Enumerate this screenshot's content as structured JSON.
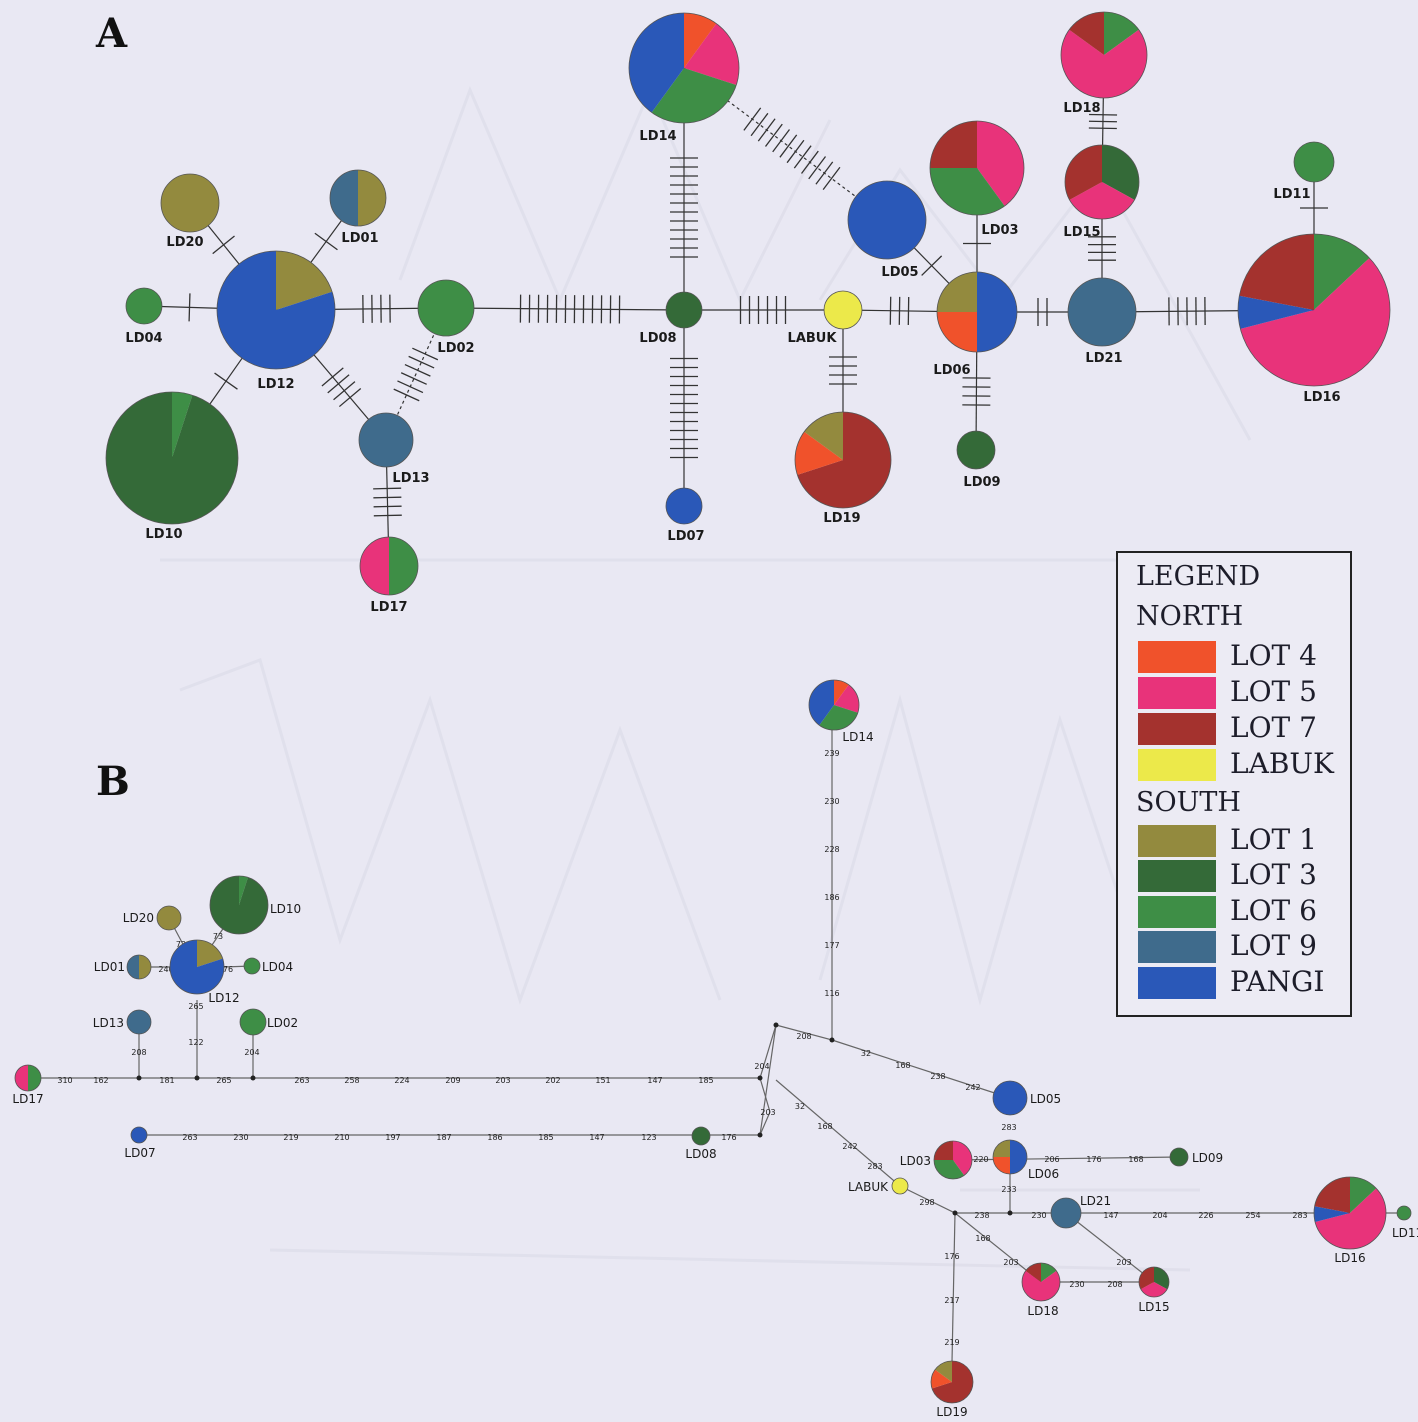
{
  "panels": {
    "a": "A",
    "b": "B"
  },
  "colors": {
    "LOT4": "#f0522b",
    "LOT5": "#e8337a",
    "LOT7": "#a4322e",
    "LABUK": "#ece94a",
    "LOT1": "#938a3e",
    "LOT3": "#346a38",
    "LOT6": "#3e8e46",
    "LOT9": "#3f6b8c",
    "PANGI": "#2a58b8"
  },
  "legend": {
    "title": "LEGEND",
    "groups": [
      {
        "name": "NORTH",
        "items": [
          {
            "key": "LOT4",
            "label": "LOT 4"
          },
          {
            "key": "LOT5",
            "label": "LOT 5"
          },
          {
            "key": "LOT7",
            "label": "LOT 7"
          },
          {
            "key": "LABUK",
            "label": "LABUK"
          }
        ]
      },
      {
        "name": "SOUTH",
        "items": [
          {
            "key": "LOT1",
            "label": "LOT 1"
          },
          {
            "key": "LOT3",
            "label": "LOT 3"
          },
          {
            "key": "LOT6",
            "label": "LOT 6"
          },
          {
            "key": "LOT9",
            "label": "LOT 9"
          },
          {
            "key": "PANGI",
            "label": "PANGI"
          }
        ]
      }
    ]
  },
  "haplotypes": [
    {
      "id": "LD01",
      "label": "LD01",
      "composition": [
        [
          "LOT1",
          0.5
        ],
        [
          "LOT9",
          0.5
        ]
      ]
    },
    {
      "id": "LD02",
      "label": "LD02",
      "composition": [
        [
          "LOT6",
          1
        ]
      ]
    },
    {
      "id": "LD03",
      "label": "LD03",
      "composition": [
        [
          "LOT5",
          0.4
        ],
        [
          "LOT6",
          0.35
        ],
        [
          "LOT7",
          0.25
        ]
      ]
    },
    {
      "id": "LD04",
      "label": "LD04",
      "composition": [
        [
          "LOT6",
          1
        ]
      ]
    },
    {
      "id": "LD05",
      "label": "LD05",
      "composition": [
        [
          "PANGI",
          1
        ]
      ]
    },
    {
      "id": "LD06",
      "label": "LD06",
      "composition": [
        [
          "PANGI",
          0.5
        ],
        [
          "LOT4",
          0.25
        ],
        [
          "LOT1",
          0.25
        ]
      ]
    },
    {
      "id": "LD07",
      "label": "LD07",
      "composition": [
        [
          "PANGI",
          1
        ]
      ]
    },
    {
      "id": "LD08",
      "label": "LD08",
      "composition": [
        [
          "LOT3",
          1
        ]
      ]
    },
    {
      "id": "LD09",
      "label": "LD09",
      "composition": [
        [
          "LOT3",
          1
        ]
      ]
    },
    {
      "id": "LD10",
      "label": "LD10",
      "composition": [
        [
          "LOT6",
          0.05
        ],
        [
          "LOT3",
          0.95
        ]
      ]
    },
    {
      "id": "LD11",
      "label": "LD11",
      "composition": [
        [
          "LOT6",
          1
        ]
      ]
    },
    {
      "id": "LD12",
      "label": "LD12",
      "composition": [
        [
          "LOT1",
          0.2
        ],
        [
          "PANGI",
          0.8
        ]
      ]
    },
    {
      "id": "LD13",
      "label": "LD13",
      "composition": [
        [
          "LOT9",
          1
        ]
      ]
    },
    {
      "id": "LD14",
      "label": "LD14",
      "composition": [
        [
          "LOT4",
          0.1
        ],
        [
          "LOT5",
          0.2
        ],
        [
          "LOT6",
          0.3
        ],
        [
          "PANGI",
          0.4
        ]
      ]
    },
    {
      "id": "LD15",
      "label": "LD15",
      "composition": [
        [
          "LOT3",
          0.33
        ],
        [
          "LOT5",
          0.34
        ],
        [
          "LOT7",
          0.33
        ]
      ]
    },
    {
      "id": "LD16",
      "label": "LD16",
      "composition": [
        [
          "LOT6",
          0.13
        ],
        [
          "LOT5",
          0.58
        ],
        [
          "PANGI",
          0.07
        ],
        [
          "LOT7",
          0.22
        ]
      ]
    },
    {
      "id": "LD17",
      "label": "LD17",
      "composition": [
        [
          "LOT6",
          0.5
        ],
        [
          "LOT5",
          0.5
        ]
      ]
    },
    {
      "id": "LD18",
      "label": "LD18",
      "composition": [
        [
          "LOT6",
          0.15
        ],
        [
          "LOT5",
          0.7
        ],
        [
          "LOT7",
          0.15
        ]
      ]
    },
    {
      "id": "LD19",
      "label": "LD19",
      "composition": [
        [
          "LOT7",
          0.7
        ],
        [
          "LOT4",
          0.15
        ],
        [
          "LOT1",
          0.15
        ]
      ]
    },
    {
      "id": "LD20",
      "label": "LD20",
      "composition": [
        [
          "LOT1",
          1
        ]
      ]
    },
    {
      "id": "LD21",
      "label": "LD21",
      "composition": [
        [
          "LOT9",
          1
        ]
      ]
    },
    {
      "id": "LABUK",
      "label": "LABUK",
      "composition": [
        [
          "LABUK",
          1
        ]
      ]
    }
  ],
  "network_a": {
    "links": [
      {
        "from": "LD04",
        "to": "LD12",
        "steps": 1
      },
      {
        "from": "LD20",
        "to": "LD12",
        "steps": 1
      },
      {
        "from": "LD01",
        "to": "LD12",
        "steps": 1
      },
      {
        "from": "LD10",
        "to": "LD12",
        "steps": 1
      },
      {
        "from": "LD12",
        "to": "LD02",
        "steps": 4
      },
      {
        "from": "LD12",
        "to": "LD13",
        "steps": 4
      },
      {
        "from": "LD02",
        "to": "LD13",
        "steps": 6,
        "dashed": true
      },
      {
        "from": "LD13",
        "to": "LD17",
        "steps": 4
      },
      {
        "from": "LD02",
        "to": "LD08",
        "steps": 12
      },
      {
        "from": "LD08",
        "to": "LD14",
        "steps": 12
      },
      {
        "from": "LD08",
        "to": "LD07",
        "steps": 12
      },
      {
        "from": "LD14",
        "to": "LD05",
        "steps": 12,
        "dashed": true
      },
      {
        "from": "LD08",
        "to": "LABUK",
        "steps": 6
      },
      {
        "from": "LABUK",
        "to": "LD19",
        "steps": 4
      },
      {
        "from": "LABUK",
        "to": "LD06",
        "steps": 3
      },
      {
        "from": "LD05",
        "to": "LD06",
        "steps": 1
      },
      {
        "from": "LD03",
        "to": "LD06",
        "steps": 1
      },
      {
        "from": "LD06",
        "to": "LD09",
        "steps": 4
      },
      {
        "from": "LD06",
        "to": "LD21",
        "steps": 2
      },
      {
        "from": "LD21",
        "to": "LD15",
        "steps": 4
      },
      {
        "from": "LD15",
        "to": "LD18",
        "steps": 3
      },
      {
        "from": "LD21",
        "to": "LD16",
        "steps": 5
      },
      {
        "from": "LD16",
        "to": "LD11",
        "steps": 1
      }
    ]
  },
  "network_b": {
    "edge_labels": [
      "310",
      "162",
      "181",
      "265",
      "263",
      "258",
      "224",
      "209",
      "203",
      "202",
      "151",
      "147",
      "185",
      "263",
      "230",
      "219",
      "210",
      "197",
      "187",
      "186",
      "185",
      "147",
      "123",
      "176",
      "208",
      "122",
      "204",
      "72",
      "73",
      "240",
      "76",
      "265",
      "239",
      "230",
      "228",
      "186",
      "177",
      "116",
      "208",
      "32",
      "168",
      "238",
      "242",
      "283",
      "206",
      "176",
      "168",
      "220",
      "233",
      "204",
      "203",
      "32",
      "168",
      "242",
      "283",
      "298",
      "238",
      "230",
      "147",
      "204",
      "226",
      "254",
      "283",
      "310",
      "168",
      "203",
      "203",
      "230",
      "208",
      "176",
      "217",
      "219"
    ]
  }
}
